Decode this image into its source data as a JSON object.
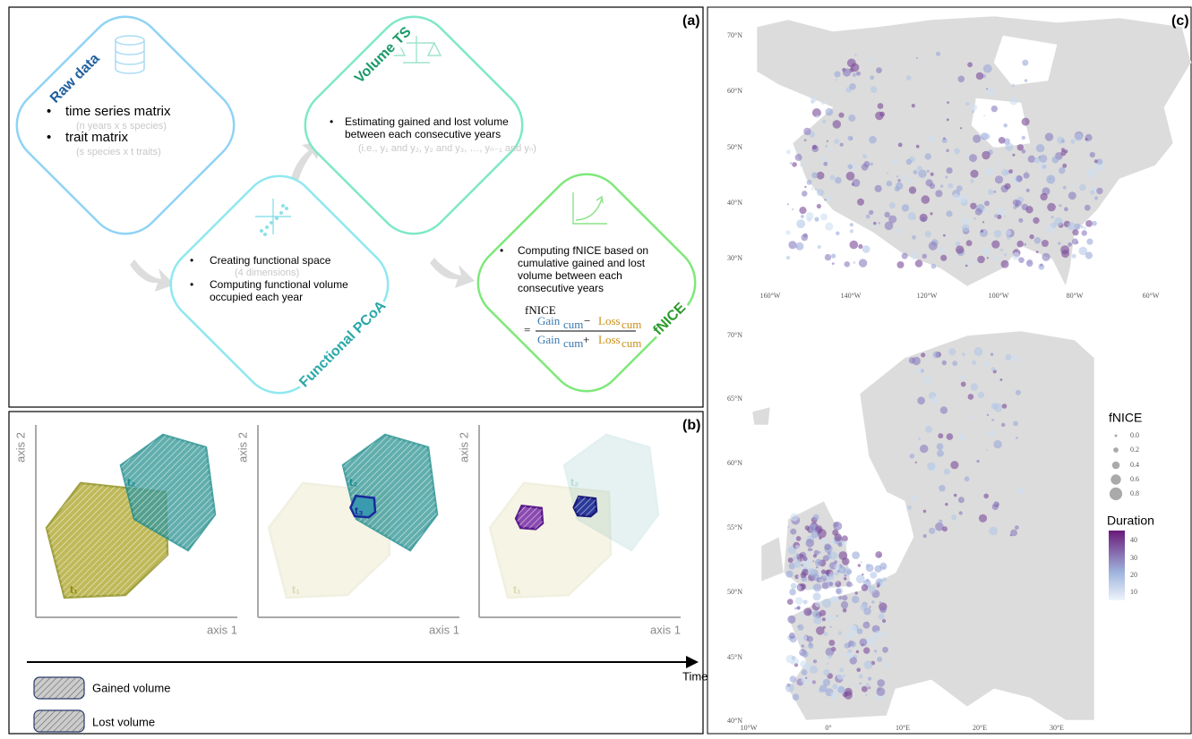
{
  "panel_a": {
    "label": "(a)",
    "raw_data": {
      "title": "Raw data",
      "items": [
        {
          "text": "time series matrix",
          "note": "(n years x s species)"
        },
        {
          "text": "trait matrix",
          "note": "(s species x t traits)"
        }
      ]
    },
    "volume_ts": {
      "title": "Volume TS",
      "lines": [
        "Estimating gained and lost volume",
        "between each consecutive years"
      ],
      "note": "(i.e., y₁ and y₂, y₂ and y₃, …, yₙ₋₁ and yₙ)"
    },
    "functional_pcoa": {
      "title": "Functional PCoA",
      "item1": "Creating functional space",
      "note": "(4 dimensions)",
      "item2_lines": [
        "Computing functional volume",
        "occupied each year"
      ]
    },
    "fnice": {
      "title": "fNICE",
      "lines": [
        "Computing fNICE based on",
        "cumulative gained and lost",
        "volume between each",
        "consecutive years"
      ],
      "formula": {
        "lhs": "fNICE",
        "eq": "=",
        "gain": "Gain",
        "loss": "Loss",
        "sub": "cum",
        "minus": "−",
        "plus": "+"
      }
    }
  },
  "panel_b": {
    "label": "(b)",
    "axis_y": "axis 2",
    "axis_x": "axis 1",
    "t_labels": [
      "t₁",
      "t₂",
      "t₃"
    ],
    "time": "Time",
    "legend": [
      "Gained volume",
      "Lost volume"
    ]
  },
  "panel_c": {
    "label": "(c)",
    "na_lat": [
      "70°N",
      "60°N",
      "50°N",
      "40°N",
      "30°N"
    ],
    "na_lon": [
      "160°W",
      "140°W",
      "120°W",
      "100°W",
      "80°W",
      "60°W"
    ],
    "eu_lat": [
      "70°N",
      "65°N",
      "60°N",
      "55°N",
      "50°N",
      "45°N",
      "40°N"
    ],
    "eu_lon": [
      "10°W",
      "0°",
      "10°E",
      "20°E",
      "30°E"
    ],
    "size_title": "fNICE",
    "size_labels": [
      "0.0",
      "0.2",
      "0.4",
      "0.6",
      "0.8"
    ],
    "color_title": "Duration",
    "color_labels": [
      "40",
      "30",
      "20",
      "10"
    ]
  }
}
